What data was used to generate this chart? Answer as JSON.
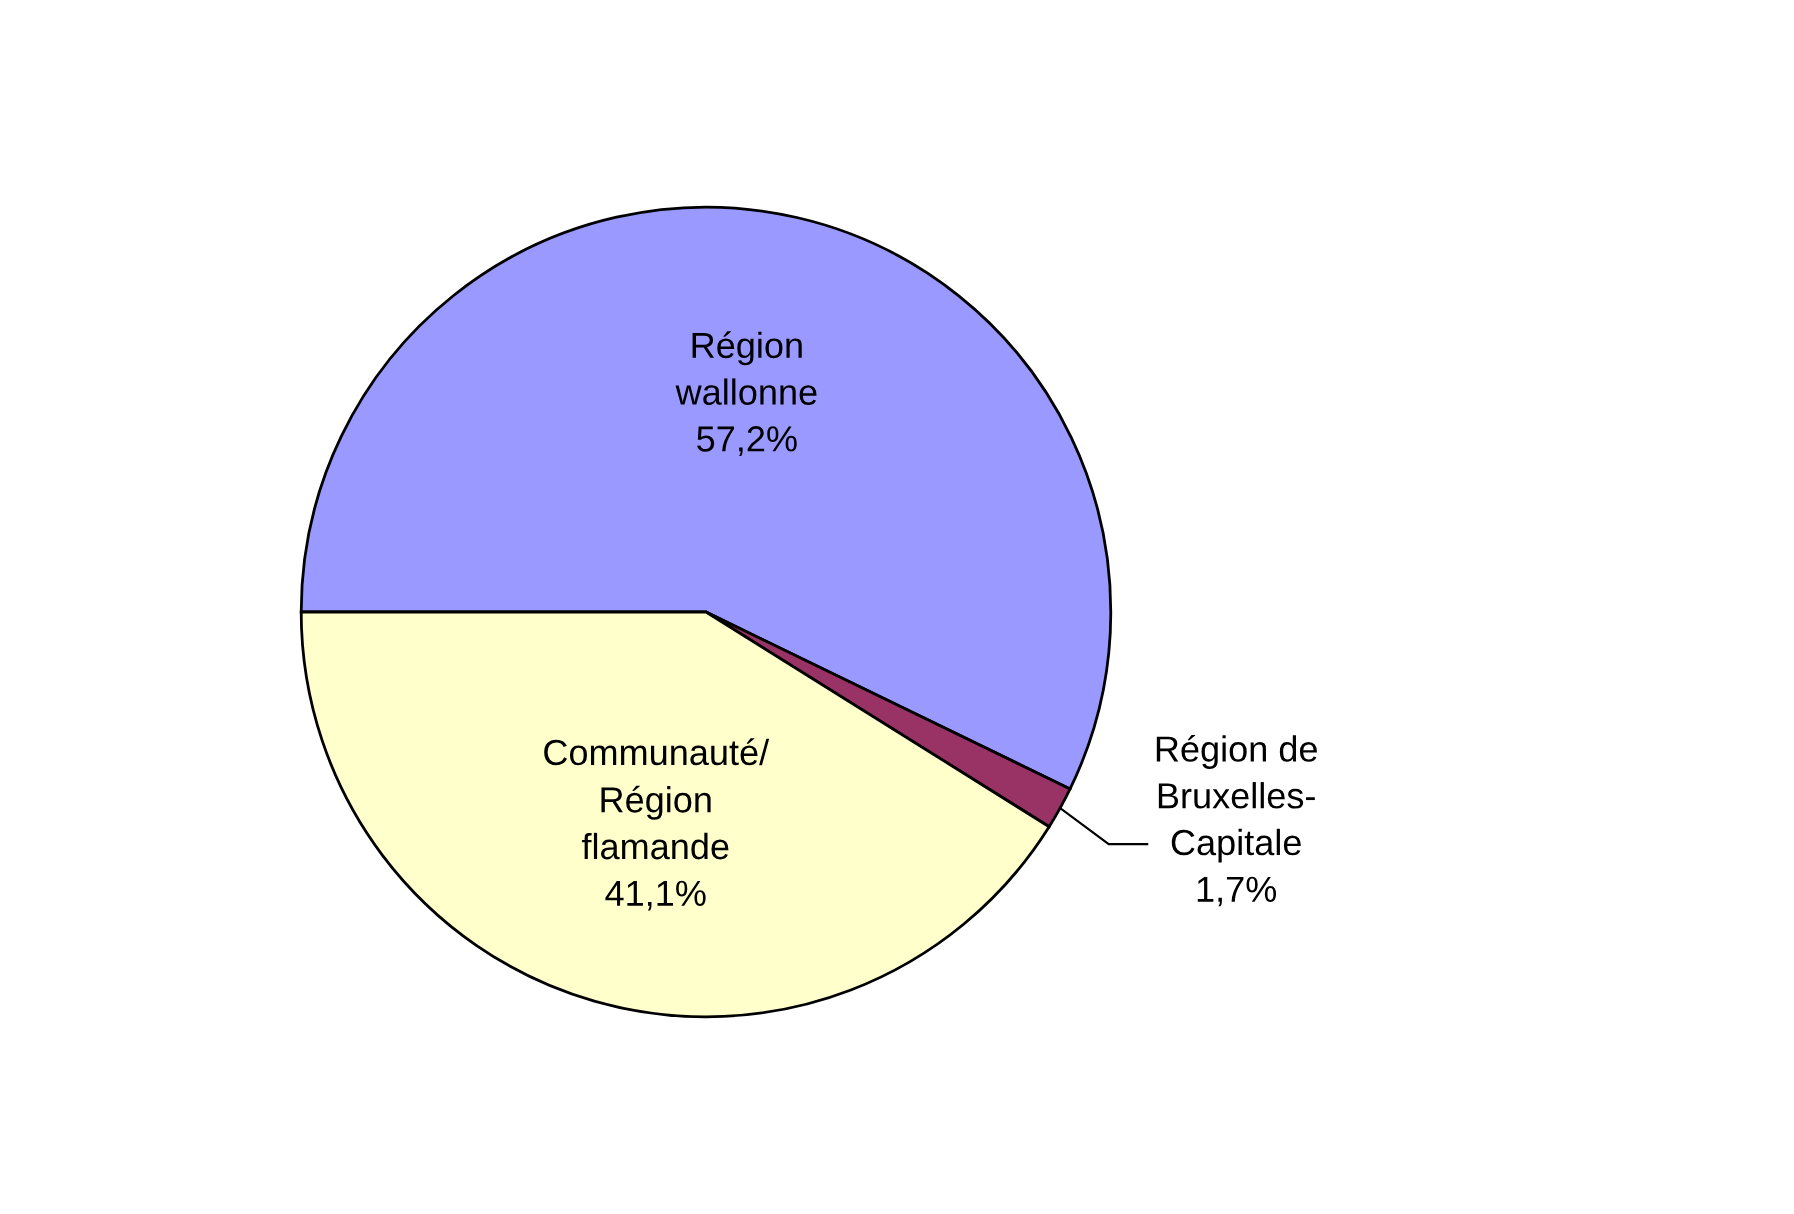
{
  "chart_data": {
    "type": "pie",
    "categories": [
      "Région\nwallonne",
      "Région de\nBruxelles-\nCapitale",
      "Communauté/\nRégion\nflamande"
    ],
    "values": [
      57.2,
      1.7,
      41.1
    ],
    "value_labels": [
      "57,2%",
      "1,7%",
      "41,1%"
    ],
    "colors": [
      "#9999ff",
      "#993366",
      "#ffffcc"
    ],
    "legend": false
  }
}
